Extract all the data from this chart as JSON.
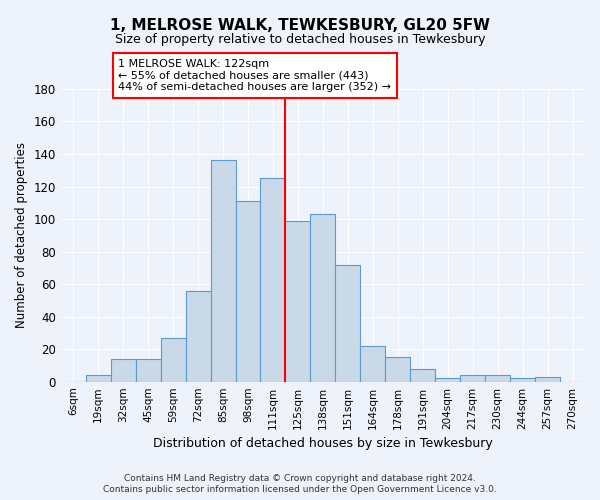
{
  "title": "1, MELROSE WALK, TEWKESBURY, GL20 5FW",
  "subtitle": "Size of property relative to detached houses in Tewkesbury",
  "xlabel": "Distribution of detached houses by size in Tewkesbury",
  "ylabel": "Number of detached properties",
  "footer_line1": "Contains HM Land Registry data © Crown copyright and database right 2024.",
  "footer_line2": "Contains public sector information licensed under the Open Government Licence v3.0.",
  "property_label": "1 MELROSE WALK: 122sqm",
  "annotation_line1": "← 55% of detached houses are smaller (443)",
  "annotation_line2": "44% of semi-detached houses are larger (352) →",
  "bar_color": "#c9d9e8",
  "bar_edge_color": "#5b9bd5",
  "vline_color": "red",
  "background_color": "#eef2fb",
  "grid_color": "#ffffff",
  "categories": [
    "6sqm",
    "19sqm",
    "32sqm",
    "45sqm",
    "59sqm",
    "72sqm",
    "85sqm",
    "98sqm",
    "111sqm",
    "125sqm",
    "138sqm",
    "151sqm",
    "164sqm",
    "178sqm",
    "191sqm",
    "204sqm",
    "217sqm",
    "230sqm",
    "244sqm",
    "257sqm",
    "270sqm"
  ],
  "values": [
    0,
    4,
    14,
    14,
    27,
    56,
    136,
    111,
    125,
    99,
    103,
    72,
    22,
    15,
    8,
    2,
    4,
    4,
    2,
    3,
    0
  ],
  "ylim": [
    0,
    180
  ],
  "yticks": [
    0,
    20,
    40,
    60,
    80,
    100,
    120,
    140,
    160,
    180
  ],
  "vline_x": 8.5,
  "figsize": [
    6.0,
    5.0
  ],
  "dpi": 100
}
